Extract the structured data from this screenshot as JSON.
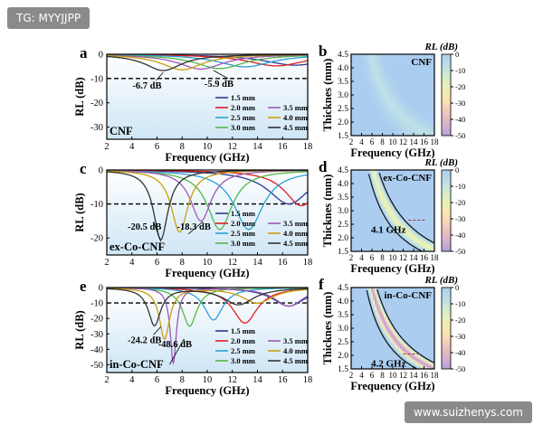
{
  "watermarks": {
    "top_left": "TG: MYYJJPP",
    "bottom_right": "www.suizhenys.com"
  },
  "colors": {
    "1.5 mm": "#2b3b90",
    "2.0 mm": "#e02020",
    "2.5 mm": "#2a9fd6",
    "3.0 mm": "#52b84a",
    "3.5 mm": "#9b59b6",
    "4.0 mm": "#c8a010",
    "4.5 mm": "#333333"
  },
  "chart_data": [
    {
      "panel": "a",
      "type": "line",
      "inset_label": "CNF",
      "xlabel": "Frequency (GHz)",
      "ylabel": "RL (dB)",
      "xlim": [
        2,
        18
      ],
      "ylim": [
        -35,
        0
      ],
      "xticks": [
        2,
        4,
        6,
        8,
        10,
        12,
        14,
        16,
        18
      ],
      "yticks": [
        0,
        -10,
        -20,
        -30
      ],
      "threshold": -10,
      "annotations": [
        {
          "text": "-6.7 dB",
          "x": 6.5,
          "y": -6.7
        },
        {
          "text": "-5.9 dB",
          "x": 10.5,
          "y": -5.9
        }
      ],
      "series": [
        {
          "name": "1.5 mm",
          "dips": [
            [
              17,
              -4.5,
              3
            ]
          ]
        },
        {
          "name": "2.0 mm",
          "dips": [
            [
              15.5,
              -4.8,
              2.8
            ]
          ]
        },
        {
          "name": "2.5 mm",
          "dips": [
            [
              13,
              -5.2,
              2.6
            ]
          ]
        },
        {
          "name": "3.0 mm",
          "dips": [
            [
              11,
              -5.9,
              2.4
            ]
          ]
        },
        {
          "name": "3.5 mm",
          "dips": [
            [
              9.5,
              -6.1,
              2.2
            ]
          ]
        },
        {
          "name": "4.0 mm",
          "dips": [
            [
              8,
              -6.4,
              2
            ]
          ]
        },
        {
          "name": "4.5 mm",
          "dips": [
            [
              6.5,
              -6.7,
              1.8
            ]
          ]
        }
      ]
    },
    {
      "panel": "c",
      "type": "line",
      "inset_label": "ex-Co-CNF",
      "xlabel": "Frequency (GHz)",
      "ylabel": "RL (dB)",
      "xlim": [
        2,
        18
      ],
      "ylim": [
        -25,
        0
      ],
      "xticks": [
        2,
        4,
        6,
        8,
        10,
        12,
        14,
        16,
        18
      ],
      "yticks": [
        0,
        -10,
        -20
      ],
      "threshold": -10,
      "annotations": [
        {
          "text": "-20.5 dB",
          "x": 6.3,
          "y": -20.5
        },
        {
          "text": "-18.3 dB",
          "x": 8.5,
          "y": -18.3
        }
      ],
      "series": [
        {
          "name": "1.5 mm",
          "dips": [
            [
              16.5,
              -10,
              2
            ]
          ]
        },
        {
          "name": "2.0 mm",
          "dips": [
            [
              17.5,
              -10.5,
              1.6
            ]
          ]
        },
        {
          "name": "2.5 mm",
          "dips": [
            [
              13.3,
              -17.5,
              1.4
            ]
          ]
        },
        {
          "name": "3.0 mm",
          "dips": [
            [
              11,
              -17.5,
              1.2
            ]
          ]
        },
        {
          "name": "3.5 mm",
          "dips": [
            [
              9.5,
              -15,
              1
            ]
          ]
        },
        {
          "name": "4.0 mm",
          "dips": [
            [
              7.8,
              -18.3,
              0.8
            ]
          ]
        },
        {
          "name": "4.5 mm",
          "dips": [
            [
              6.3,
              -20.5,
              0.7
            ]
          ]
        }
      ]
    },
    {
      "panel": "e",
      "type": "line",
      "inset_label": "in-Co-CNF",
      "xlabel": "Frequency (GHz)",
      "ylabel": "RL (dB)",
      "xlim": [
        2,
        18
      ],
      "ylim": [
        -55,
        0
      ],
      "xticks": [
        2,
        4,
        6,
        8,
        10,
        12,
        14,
        16,
        18
      ],
      "yticks": [
        0,
        -10,
        -20,
        -30,
        -40,
        -50
      ],
      "threshold": -10,
      "annotations": [
        {
          "text": "-24.2 dB",
          "x": 6.3,
          "y": -24.2
        },
        {
          "text": "-48.6 dB",
          "x": 7,
          "y": -48.6
        }
      ],
      "series": [
        {
          "name": "1.5 mm",
          "dips": [
            [
              16.5,
              -12,
              1.6
            ]
          ]
        },
        {
          "name": "2.0 mm",
          "dips": [
            [
              13,
              -23,
              1.2
            ]
          ]
        },
        {
          "name": "2.5 mm",
          "dips": [
            [
              10.5,
              -21,
              0.9
            ]
          ]
        },
        {
          "name": "3.0 mm",
          "dips": [
            [
              8.6,
              -25,
              0.7
            ]
          ]
        },
        {
          "name": "3.5 mm",
          "dips": [
            [
              7.3,
              -48.6,
              0.3
            ],
            [
              16.5,
              -12,
              1.4
            ]
          ]
        },
        {
          "name": "4.0 mm",
          "dips": [
            [
              6.6,
              -33,
              0.5
            ],
            [
              14,
              -10,
              1.5
            ]
          ]
        },
        {
          "name": "4.5 mm",
          "dips": [
            [
              5.8,
              -24.2,
              0.6
            ],
            [
              12.5,
              -11,
              1.5
            ]
          ]
        }
      ]
    },
    {
      "panel": "b",
      "type": "heatmap",
      "inset_label": "CNF",
      "xlabel": "Frequency (GHz)",
      "ylabel": "Thicknes (mm)",
      "colorbar_label": "RL (dB)",
      "xlim": [
        2,
        18
      ],
      "ylim": [
        1.5,
        4.5
      ],
      "clim": [
        -50,
        0
      ],
      "xticks": [
        2,
        4,
        6,
        8,
        10,
        12,
        14,
        16,
        18
      ],
      "yticks": [
        1.5,
        2.0,
        2.5,
        3.0,
        3.5,
        4.0,
        4.5
      ],
      "cbar_ticks": [
        0,
        -10,
        -20,
        -30,
        -40,
        -50
      ],
      "field": {
        "k": 26,
        "min": -7,
        "width": 0.9
      },
      "contour": null,
      "annotation": null
    },
    {
      "panel": "d",
      "type": "heatmap",
      "inset_label": "ex-Co-CNF",
      "xlabel": "Frequency (GHz)",
      "ylabel": "Thicknes (mm)",
      "colorbar_label": "RL (dB)",
      "xlim": [
        2,
        18
      ],
      "ylim": [
        1.5,
        4.5
      ],
      "clim": [
        -50,
        0
      ],
      "xticks": [
        2,
        4,
        6,
        8,
        10,
        12,
        14,
        16,
        18
      ],
      "yticks": [
        1.5,
        2.0,
        2.5,
        3.0,
        3.5,
        4.0,
        4.5
      ],
      "cbar_ticks": [
        0,
        -10,
        -20,
        -30,
        -40,
        -50
      ],
      "field": {
        "k": 28,
        "min": -21,
        "width": 0.4
      },
      "contour": [
        23.5,
        32.5
      ],
      "annotation": {
        "text": "4.1 GHz",
        "x": 13,
        "y": 2.65
      }
    },
    {
      "panel": "f",
      "type": "heatmap",
      "inset_label": "in-Co-CNF",
      "xlabel": "Frequency (GHz)",
      "ylabel": "Thicknes (mm)",
      "colorbar_label": "RL (dB)",
      "xlim": [
        2,
        18
      ],
      "ylim": [
        1.5,
        4.5
      ],
      "clim": [
        -50,
        0
      ],
      "xticks": [
        2,
        4,
        6,
        8,
        10,
        12,
        14,
        16,
        18
      ],
      "yticks": [
        1.5,
        2.0,
        2.5,
        3.0,
        3.5,
        4.0,
        4.5
      ],
      "cbar_ticks": [
        0,
        -10,
        -20,
        -30,
        -40,
        -50
      ],
      "field": {
        "k": 27,
        "min": -48,
        "width": 0.35
      },
      "contour": [
        22,
        31
      ],
      "annotation": {
        "text": "4.2 GHz",
        "x": 12,
        "y": 2.05
      }
    }
  ]
}
